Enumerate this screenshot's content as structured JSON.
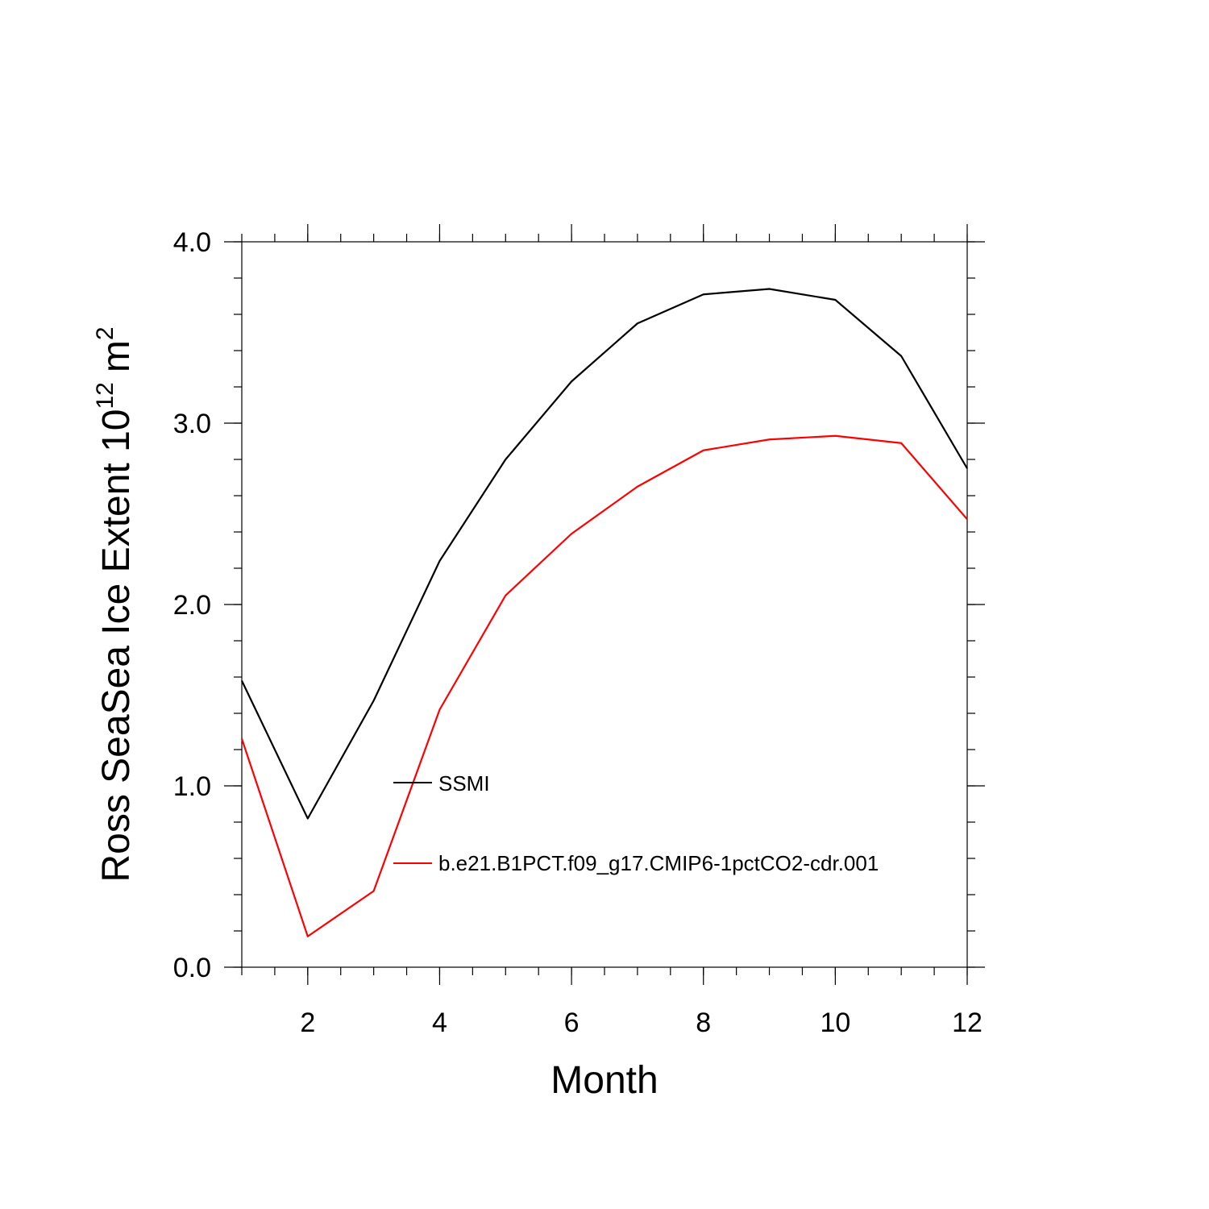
{
  "chart_data": {
    "type": "line",
    "xlabel": "Month",
    "ylabel": {
      "text": "Ross SeaSea Ice Extent 10",
      "exponent": "12",
      "unit": "m",
      "unit_exponent": "2"
    },
    "xlim": [
      1,
      12
    ],
    "ylim": [
      0,
      4
    ],
    "x_ticks": [
      2,
      4,
      6,
      8,
      10,
      12
    ],
    "x_tick_labels": [
      "2",
      "4",
      "6",
      "8",
      "10",
      "12"
    ],
    "y_ticks": [
      0,
      1,
      2,
      3,
      4
    ],
    "y_tick_labels": [
      "0.0",
      "1.0",
      "2.0",
      "3.0",
      "4.0"
    ],
    "x": [
      1,
      2,
      3,
      4,
      5,
      6,
      7,
      8,
      9,
      10,
      11,
      12
    ],
    "series": [
      {
        "name": "SSMI",
        "color": "#000000",
        "values": [
          1.58,
          0.82,
          1.47,
          2.24,
          2.8,
          3.23,
          3.55,
          3.71,
          3.74,
          3.68,
          3.37,
          2.75
        ]
      },
      {
        "name": "b.e21.B1PCT.f09_g17.CMIP6-1pctCO2-cdr.001",
        "color": "#ff0000",
        "values": [
          1.26,
          0.17,
          0.42,
          1.42,
          2.05,
          2.39,
          2.65,
          2.85,
          2.91,
          2.93,
          2.89,
          2.47
        ]
      }
    ],
    "legend_position": "center",
    "grid": false
  }
}
